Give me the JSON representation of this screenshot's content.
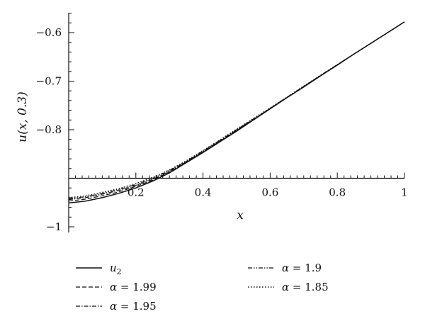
{
  "chart_data": {
    "type": "line",
    "xlabel": "x",
    "ylabel": "u(x, 0.3)",
    "xlim": [
      0,
      1
    ],
    "ylim": [
      -1.0,
      -0.56
    ],
    "x_axis_crossing_y": -0.9,
    "x_ticks": [
      0.2,
      0.4,
      0.6,
      0.8,
      1
    ],
    "x_tick_labels": [
      "0.2",
      "0.4",
      "0.6",
      "0.8",
      "1"
    ],
    "y_ticks": [
      -1,
      -0.8,
      -0.7,
      -0.6
    ],
    "y_tick_labels": [
      "−1",
      "−0.8",
      "−0.7",
      "−0.6"
    ],
    "grid": false,
    "legend_position": "bottom",
    "x": [
      0,
      0.05,
      0.1,
      0.15,
      0.2,
      0.25,
      0.3,
      0.35,
      0.4,
      0.45,
      0.5,
      0.55,
      0.6,
      0.65,
      0.7,
      0.75,
      0.8,
      0.85,
      0.9,
      0.95,
      1
    ],
    "series": [
      {
        "name_sym": "u",
        "name_sub": "2",
        "style": "solid",
        "values": [
          -0.951,
          -0.947,
          -0.94,
          -0.931,
          -0.92,
          -0.906,
          -0.889,
          -0.868,
          -0.847,
          -0.825,
          -0.803,
          -0.78,
          -0.757,
          -0.734,
          -0.712,
          -0.689,
          -0.667,
          -0.644,
          -0.622,
          -0.6,
          -0.578
        ]
      },
      {
        "name_sym": "α",
        "name_eq": " = 1.99",
        "style": "dashed",
        "values": [
          -0.947,
          -0.943,
          -0.936,
          -0.928,
          -0.917,
          -0.904,
          -0.887,
          -0.867,
          -0.846,
          -0.824,
          -0.802,
          -0.78,
          -0.757,
          -0.734,
          -0.712,
          -0.689,
          -0.667,
          -0.644,
          -0.622,
          -0.6,
          -0.578
        ]
      },
      {
        "name_sym": "α",
        "name_eq": " = 1.95",
        "style": "dashdot",
        "values": [
          -0.944,
          -0.94,
          -0.933,
          -0.925,
          -0.915,
          -0.902,
          -0.886,
          -0.866,
          -0.845,
          -0.823,
          -0.801,
          -0.779,
          -0.756,
          -0.734,
          -0.711,
          -0.689,
          -0.666,
          -0.644,
          -0.622,
          -0.6,
          -0.578
        ]
      },
      {
        "name_sym": "α",
        "name_eq": " = 1.9",
        "style": "dashdotdot",
        "values": [
          -0.942,
          -0.938,
          -0.931,
          -0.923,
          -0.913,
          -0.9,
          -0.884,
          -0.865,
          -0.844,
          -0.822,
          -0.8,
          -0.778,
          -0.756,
          -0.733,
          -0.711,
          -0.688,
          -0.666,
          -0.644,
          -0.622,
          -0.6,
          -0.578
        ]
      },
      {
        "name_sym": "α",
        "name_eq": " = 1.85",
        "style": "dotted",
        "values": [
          -0.94,
          -0.936,
          -0.929,
          -0.921,
          -0.911,
          -0.898,
          -0.883,
          -0.864,
          -0.843,
          -0.821,
          -0.799,
          -0.777,
          -0.755,
          -0.733,
          -0.71,
          -0.688,
          -0.666,
          -0.644,
          -0.622,
          -0.6,
          -0.578
        ]
      }
    ]
  }
}
